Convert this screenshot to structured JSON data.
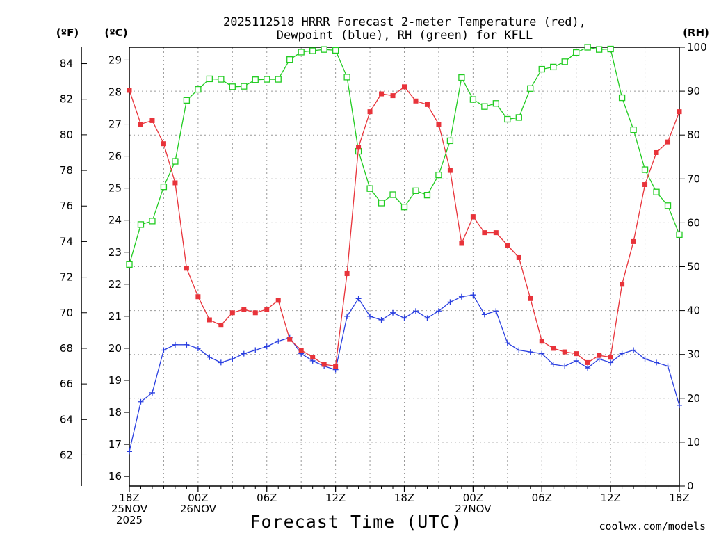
{
  "chart_data": {
    "type": "line",
    "title_lines": [
      "2025112518 HRRR Forecast 2-meter Temperature (red),",
      "Dewpoint (blue), RH (green) for KFLL"
    ],
    "xlabel": "Forecast Time (UTC)",
    "credit": "coolwx.com/models",
    "colors": {
      "temperature": "#e8333a",
      "dewpoint": "#2a3fe0",
      "rh": "#22cc22",
      "grid": "#9a9a9a"
    },
    "x_hours": [
      0,
      1,
      2,
      3,
      4,
      5,
      6,
      7,
      8,
      9,
      10,
      11,
      12,
      13,
      14,
      15,
      16,
      17,
      18,
      19,
      20,
      21,
      22,
      23,
      24,
      25,
      26,
      27,
      28,
      29,
      30,
      31,
      32,
      33,
      34,
      35,
      36,
      37,
      38,
      39,
      40,
      41,
      42,
      43,
      44,
      45,
      46,
      47,
      48
    ],
    "xlim": [
      0,
      48
    ],
    "x_ticks": [
      {
        "hour": 0,
        "lines": [
          "18Z",
          "25NOV",
          "2025"
        ]
      },
      {
        "hour": 6,
        "lines": [
          "00Z",
          "26NOV"
        ]
      },
      {
        "hour": 12,
        "lines": [
          "06Z"
        ]
      },
      {
        "hour": 18,
        "lines": [
          "12Z"
        ]
      },
      {
        "hour": 24,
        "lines": [
          "18Z"
        ]
      },
      {
        "hour": 30,
        "lines": [
          "00Z",
          "27NOV"
        ]
      },
      {
        "hour": 36,
        "lines": [
          "06Z"
        ]
      },
      {
        "hour": 42,
        "lines": [
          "12Z"
        ]
      },
      {
        "hour": 48,
        "lines": [
          "18Z"
        ]
      }
    ],
    "left_axis_c": {
      "label": "(ºC)",
      "ylim": [
        15.7,
        29.4
      ],
      "ticks": [
        16,
        17,
        18,
        19,
        20,
        21,
        22,
        23,
        24,
        25,
        26,
        27,
        28,
        29
      ]
    },
    "far_left_axis_f": {
      "label": "(ºF)",
      "ticks": [
        62,
        64,
        66,
        68,
        70,
        72,
        74,
        76,
        78,
        80,
        82,
        84
      ]
    },
    "right_axis_rh": {
      "label": "(RH)",
      "ylim": [
        0,
        100
      ],
      "ticks": [
        0,
        10,
        20,
        30,
        40,
        50,
        60,
        70,
        80,
        90,
        100
      ]
    },
    "series": [
      {
        "name": "2-meter Temperature",
        "units": "°F",
        "marker": "filled-square",
        "values": [
          82.5,
          80.6,
          80.8,
          79.5,
          77.3,
          72.5,
          70.9,
          69.6,
          69.3,
          70.0,
          70.2,
          70.0,
          70.2,
          70.7,
          68.5,
          67.9,
          67.5,
          67.1,
          67.0,
          72.2,
          79.3,
          81.3,
          82.3,
          82.2,
          82.7,
          81.9,
          81.7,
          80.6,
          78.0,
          73.9,
          75.4,
          74.5,
          74.5,
          73.8,
          73.1,
          70.8,
          68.4,
          68.0,
          67.8,
          67.7,
          67.2,
          67.6,
          67.5,
          71.6,
          74.0,
          77.2,
          79.0,
          79.6,
          81.3
        ]
      },
      {
        "name": "Dewpoint",
        "units": "°F",
        "marker": "plus",
        "values": [
          62.2,
          65.0,
          65.5,
          67.9,
          68.2,
          68.2,
          68.0,
          67.5,
          67.2,
          67.4,
          67.7,
          67.9,
          68.1,
          68.4,
          68.6,
          67.7,
          67.3,
          67.0,
          66.8,
          69.8,
          70.8,
          69.8,
          69.6,
          70.0,
          69.7,
          70.1,
          69.7,
          70.1,
          70.6,
          70.9,
          71.0,
          69.9,
          70.1,
          68.3,
          67.9,
          67.8,
          67.7,
          67.1,
          67.0,
          67.3,
          66.9,
          67.4,
          67.2,
          67.7,
          67.9,
          67.4,
          67.2,
          67.0,
          64.8
        ]
      },
      {
        "name": "RH",
        "units": "%",
        "marker": "open-square",
        "values": [
          50.5,
          59.6,
          60.4,
          68.2,
          74.0,
          87.9,
          90.4,
          92.8,
          92.7,
          91.0,
          91.1,
          92.6,
          92.7,
          92.7,
          97.2,
          98.9,
          99.2,
          99.5,
          99.3,
          93.2,
          76.3,
          67.8,
          64.5,
          66.4,
          63.6,
          67.3,
          66.3,
          70.9,
          78.7,
          93.1,
          88.1,
          86.5,
          87.2,
          83.6,
          84.0,
          90.6,
          95.0,
          95.5,
          96.7,
          98.8,
          100.0,
          99.5,
          99.6,
          88.5,
          81.2,
          72.1,
          67.0,
          63.9,
          57.3
        ]
      }
    ]
  }
}
